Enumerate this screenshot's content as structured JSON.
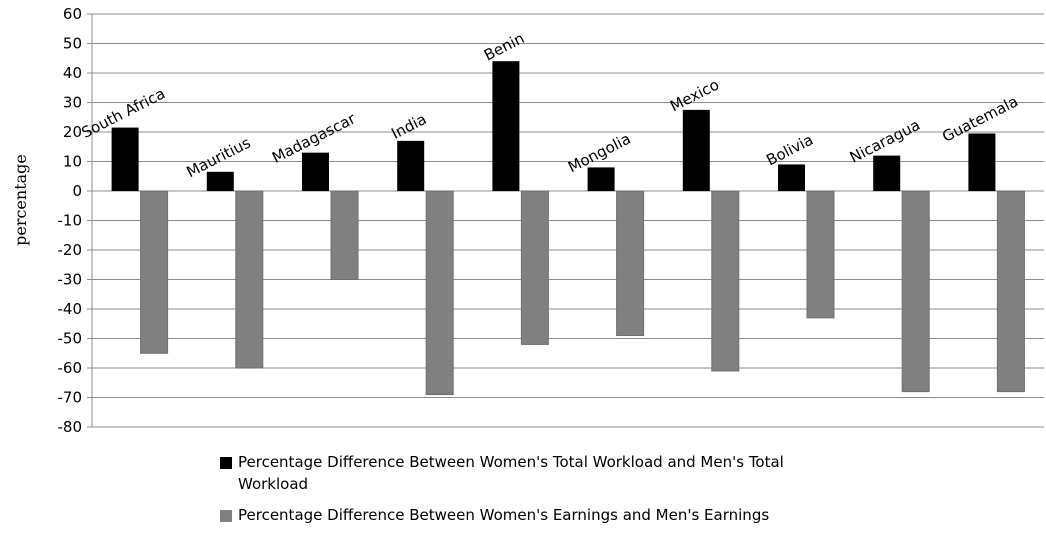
{
  "chart_data": {
    "type": "bar",
    "title": "",
    "xlabel": "",
    "ylabel": "percentage",
    "ylim": [
      -80,
      60
    ],
    "ytick_step": 10,
    "grid": true,
    "legend_position": "bottom",
    "categories": [
      "South Africa",
      "Mauritius",
      "Madagascar",
      "India",
      "Benin",
      "Mongolia",
      "Mexico",
      "Bolivia",
      "Nicaragua",
      "Guatemala"
    ],
    "series": [
      {
        "name": "Percentage Difference Between Women's Total Workload and Men's Total Workload",
        "color": "#000000",
        "values": [
          21.5,
          6.5,
          13,
          17,
          44,
          8,
          27.5,
          9,
          12,
          19.5
        ]
      },
      {
        "name": "Percentage Difference Between Women's Earnings and Men's Earnings",
        "color": "#808080",
        "values": [
          -55,
          -60,
          -30,
          -69,
          -52,
          -49,
          -61,
          -43,
          -68,
          -68
        ]
      }
    ]
  }
}
